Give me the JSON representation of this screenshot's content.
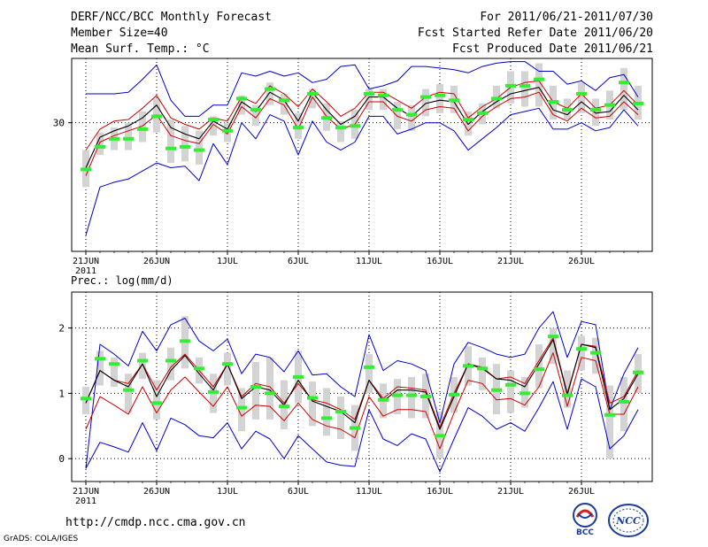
{
  "header": {
    "title": "DERF/NCC/BCC Monthly Forecast",
    "member_size": "Member Size=40",
    "variable": "Mean Surf. Temp.: °C",
    "period": "For 2011/06/21-2011/07/30",
    "start_date": "Fcst Started Refer Date 2011/06/20",
    "produced_date": "Fcst Produced Date 2011/06/21"
  },
  "footer": {
    "url": "http://cmdp.ncc.cma.gov.cn",
    "credit": "GrADS: COLA/IGES"
  },
  "logos": [
    {
      "label": "BCC",
      "icon": "bcc-logo"
    },
    {
      "label": "NCC",
      "icon": "ncc-logo"
    }
  ],
  "colors": {
    "envelope": "#0000cc",
    "ensemble_band": "#cc0000",
    "ensemble_mean": "#000000",
    "median": "#33ee33",
    "spread_bar": "#d3d3d3"
  },
  "chart_data": [
    {
      "type": "line",
      "title": "Mean Surf. Temp.: °C",
      "x": [
        1,
        2,
        3,
        4,
        5,
        6,
        7,
        8,
        9,
        10,
        11,
        12,
        13,
        14,
        15,
        16,
        17,
        18,
        19,
        20,
        21,
        22,
        23,
        24,
        25,
        26,
        27,
        28,
        29,
        30,
        31,
        32,
        33,
        34,
        35,
        36,
        37,
        38,
        39,
        40
      ],
      "xlim": [
        0,
        41
      ],
      "ylim": [
        22,
        34
      ],
      "yticks": [
        30
      ],
      "ytick_labels": [
        "30"
      ],
      "xtick_positions": [
        1,
        6,
        11,
        16,
        21,
        26,
        31,
        36
      ],
      "xtick_labels": [
        "21JUN",
        "26JUN",
        "1JUL",
        "6JUL",
        "11JUL",
        "16JUL",
        "21JUL",
        "26JUL"
      ],
      "xtick_year": "2011",
      "series": [
        {
          "name": "max",
          "values": [
            31.8,
            31.8,
            31.8,
            31.9,
            32.7,
            33.6,
            31.4,
            30.4,
            30.4,
            31.1,
            31.1,
            33.1,
            32.9,
            33.2,
            32.9,
            33.1,
            32.5,
            32.7,
            33.5,
            33.6,
            32.1,
            32.3,
            32.6,
            33.5,
            33.5,
            33.4,
            33.3,
            33.1,
            33.5,
            33.7,
            33.8,
            33.8,
            33.2,
            33.2,
            32.4,
            32.6,
            32.0,
            32.8,
            33.0,
            31.6
          ]
        },
        {
          "name": "upper",
          "values": [
            28.3,
            29.6,
            30.1,
            30.2,
            30.9,
            31.7,
            30.3,
            29.9,
            29.6,
            30.3,
            30.1,
            31.6,
            31.2,
            32.3,
            31.8,
            31.0,
            32.1,
            31.3,
            30.4,
            30.9,
            31.9,
            31.9,
            31.4,
            30.9,
            31.6,
            31.9,
            31.8,
            30.3,
            31.0,
            31.5,
            32.2,
            32.5,
            32.6,
            31.3,
            30.9,
            31.8,
            30.9,
            31.1,
            32.0,
            31.1
          ]
        },
        {
          "name": "mean",
          "values": [
            27.2,
            29.1,
            29.5,
            29.8,
            30.3,
            31.1,
            29.7,
            29.3,
            29.0,
            30.1,
            29.6,
            31.3,
            30.7,
            31.9,
            31.4,
            30.1,
            31.9,
            30.8,
            29.9,
            30.4,
            31.6,
            31.6,
            30.9,
            30.4,
            31.2,
            31.4,
            31.3,
            29.9,
            30.7,
            31.3,
            31.8,
            32.0,
            32.2,
            30.8,
            30.5,
            31.3,
            30.6,
            30.7,
            31.7,
            30.8
          ]
        },
        {
          "name": "lower",
          "values": [
            26.7,
            28.8,
            29.2,
            29.5,
            29.8,
            30.5,
            29.2,
            28.9,
            28.7,
            29.9,
            29.3,
            31.0,
            30.3,
            31.5,
            31.1,
            29.6,
            31.6,
            30.4,
            29.6,
            29.9,
            31.3,
            31.3,
            30.4,
            30.1,
            30.8,
            31.0,
            30.9,
            29.5,
            30.4,
            31.0,
            31.5,
            31.6,
            31.9,
            30.5,
            30.1,
            30.9,
            30.3,
            30.4,
            31.3,
            30.5
          ]
        },
        {
          "name": "min",
          "values": [
            23.0,
            26.0,
            26.3,
            26.5,
            27.0,
            27.5,
            27.2,
            27.3,
            26.4,
            28.7,
            27.4,
            30.0,
            29.0,
            30.5,
            30.1,
            28.0,
            30.1,
            28.8,
            28.3,
            28.8,
            30.4,
            30.4,
            29.3,
            29.6,
            30.0,
            30.0,
            29.5,
            28.3,
            29.0,
            29.7,
            30.5,
            30.7,
            30.9,
            29.6,
            29.6,
            30.0,
            29.5,
            29.7,
            30.8,
            29.8
          ]
        },
        {
          "name": "median",
          "values": [
            27.1,
            28.5,
            29.0,
            29.0,
            29.6,
            30.4,
            28.4,
            28.5,
            28.3,
            30.2,
            29.5,
            31.5,
            30.8,
            32.1,
            31.4,
            29.7,
            31.8,
            30.3,
            29.7,
            29.8,
            31.8,
            31.7,
            30.8,
            30.5,
            31.6,
            31.7,
            31.4,
            30.2,
            30.6,
            31.5,
            32.3,
            32.3,
            32.7,
            31.3,
            30.8,
            31.8,
            30.8,
            31.1,
            32.5,
            31.2
          ]
        },
        {
          "name": "spread_high",
          "values": [
            28.3,
            29.4,
            29.7,
            30.0,
            30.7,
            31.5,
            30.2,
            29.8,
            29.5,
            30.4,
            30.0,
            31.7,
            31.1,
            32.5,
            31.8,
            30.6,
            32.1,
            31.2,
            30.1,
            30.8,
            32.1,
            32.1,
            31.3,
            31.1,
            32.1,
            32.4,
            32.3,
            30.7,
            31.2,
            32.3,
            33.2,
            33.2,
            33.7,
            32.3,
            31.5,
            32.5,
            31.5,
            32.0,
            33.4,
            32.3
          ]
        },
        {
          "name": "spread_low",
          "values": [
            26.0,
            28.0,
            28.3,
            28.3,
            28.8,
            29.4,
            27.5,
            27.6,
            27.4,
            29.2,
            28.8,
            30.5,
            29.8,
            31.1,
            30.5,
            29.0,
            30.9,
            29.5,
            28.8,
            29.0,
            30.8,
            30.8,
            29.6,
            29.5,
            30.4,
            30.6,
            30.6,
            29.2,
            29.9,
            30.9,
            31.2,
            31.0,
            31.0,
            30.2,
            30.2,
            30.6,
            29.8,
            30.2,
            30.8,
            30.2
          ]
        }
      ]
    },
    {
      "type": "line",
      "title": "Prec.: log(mm/d)",
      "x": [
        1,
        2,
        3,
        4,
        5,
        6,
        7,
        8,
        9,
        10,
        11,
        12,
        13,
        14,
        15,
        16,
        17,
        18,
        19,
        20,
        21,
        22,
        23,
        24,
        25,
        26,
        27,
        28,
        29,
        30,
        31,
        32,
        33,
        34,
        35,
        36,
        37,
        38,
        39,
        40
      ],
      "xlim": [
        0,
        41
      ],
      "ylim": [
        -0.35,
        2.55
      ],
      "yticks": [
        0,
        1,
        2
      ],
      "ytick_labels": [
        "0",
        "1",
        "2"
      ],
      "xtick_positions": [
        1,
        6,
        11,
        16,
        21,
        26,
        31,
        36
      ],
      "xtick_labels": [
        "21JUN",
        "26JUN",
        "1JUL",
        "6JUL",
        "11JUL",
        "16JUL",
        "21JUL",
        "26JUL"
      ],
      "xtick_year": "2011",
      "series": [
        {
          "name": "max",
          "values": [
            -0.15,
            1.75,
            1.6,
            1.42,
            1.95,
            1.65,
            2.05,
            2.15,
            1.8,
            1.65,
            1.83,
            1.3,
            1.6,
            1.55,
            1.33,
            1.65,
            1.28,
            1.3,
            1.1,
            0.95,
            1.9,
            1.35,
            1.5,
            1.45,
            1.35,
            0.55,
            1.45,
            1.78,
            1.7,
            1.6,
            1.55,
            1.6,
            2.0,
            2.25,
            1.55,
            2.1,
            2.05,
            0.75,
            1.3,
            1.7
          ]
        },
        {
          "name": "upper",
          "values": [
            0.85,
            1.35,
            1.2,
            1.15,
            1.45,
            1.05,
            1.4,
            1.6,
            1.35,
            1.1,
            1.45,
            0.95,
            1.15,
            1.1,
            0.85,
            1.15,
            0.9,
            0.85,
            0.75,
            0.6,
            1.2,
            0.92,
            1.1,
            1.08,
            1.05,
            0.48,
            1.0,
            1.45,
            1.4,
            1.22,
            1.25,
            1.15,
            1.5,
            1.85,
            1.0,
            1.75,
            1.72,
            0.85,
            0.95,
            1.35
          ]
        },
        {
          "name": "mean",
          "values": [
            0.85,
            1.35,
            1.2,
            1.1,
            1.45,
            0.95,
            1.35,
            1.58,
            1.3,
            1.05,
            1.45,
            0.92,
            1.1,
            1.05,
            0.82,
            1.2,
            0.88,
            0.8,
            0.72,
            0.55,
            1.2,
            0.88,
            1.05,
            1.05,
            1.02,
            0.45,
            0.95,
            1.45,
            1.38,
            1.22,
            1.2,
            1.1,
            1.45,
            1.82,
            0.98,
            1.75,
            1.7,
            0.75,
            0.92,
            1.3
          ]
        },
        {
          "name": "lower",
          "values": [
            0.45,
            0.95,
            0.82,
            0.68,
            1.1,
            0.7,
            1.05,
            1.25,
            1.02,
            0.8,
            1.1,
            0.65,
            0.82,
            0.8,
            0.58,
            0.85,
            0.6,
            0.5,
            0.45,
            0.32,
            0.95,
            0.65,
            0.75,
            0.75,
            0.72,
            0.15,
            0.7,
            1.2,
            1.15,
            0.9,
            0.92,
            0.82,
            1.1,
            1.62,
            0.8,
            1.55,
            1.5,
            0.68,
            0.68,
            1.1
          ]
        },
        {
          "name": "min",
          "values": [
            -0.15,
            0.25,
            0.18,
            0.1,
            0.55,
            0.12,
            0.62,
            0.52,
            0.35,
            0.32,
            0.55,
            0.15,
            0.42,
            0.3,
            0.0,
            0.35,
            0.15,
            -0.05,
            -0.1,
            -0.12,
            0.75,
            0.3,
            0.2,
            0.38,
            0.3,
            -0.2,
            0.3,
            0.78,
            0.65,
            0.45,
            0.55,
            0.42,
            0.78,
            1.18,
            0.45,
            1.22,
            1.1,
            0.15,
            0.35,
            0.75
          ]
        },
        {
          "name": "median",
          "values": [
            0.92,
            1.53,
            1.45,
            1.05,
            1.5,
            0.85,
            1.5,
            1.8,
            1.38,
            1.02,
            1.45,
            0.78,
            1.1,
            1.0,
            0.8,
            1.25,
            0.93,
            0.62,
            0.72,
            0.47,
            1.4,
            0.9,
            0.97,
            0.97,
            0.95,
            0.35,
            0.98,
            1.42,
            1.38,
            1.05,
            1.13,
            1.0,
            1.37,
            1.87,
            0.97,
            1.68,
            1.62,
            0.67,
            0.87,
            1.32
          ]
        },
        {
          "name": "spread_high",
          "values": [
            1.1,
            1.65,
            1.55,
            1.3,
            1.62,
            1.2,
            1.7,
            2.18,
            1.55,
            1.3,
            1.62,
            1.08,
            1.48,
            1.55,
            1.2,
            1.65,
            1.18,
            1.08,
            0.95,
            0.82,
            1.6,
            1.15,
            1.22,
            1.25,
            1.3,
            0.72,
            1.25,
            1.72,
            1.55,
            1.45,
            1.35,
            1.25,
            1.75,
            2.0,
            1.35,
            1.88,
            1.85,
            1.12,
            1.25,
            1.6
          ]
        },
        {
          "name": "spread_low",
          "values": [
            0.68,
            1.12,
            1.1,
            0.7,
            1.22,
            0.6,
            1.2,
            1.38,
            1.15,
            0.7,
            1.12,
            0.42,
            0.6,
            0.6,
            0.45,
            0.85,
            0.5,
            0.35,
            0.3,
            0.12,
            1.0,
            0.62,
            0.68,
            0.62,
            0.62,
            0.0,
            0.7,
            1.12,
            1.05,
            0.68,
            0.7,
            0.78,
            1.08,
            1.45,
            0.78,
            1.35,
            1.3,
            0.0,
            0.42,
            1.0
          ]
        }
      ]
    }
  ]
}
